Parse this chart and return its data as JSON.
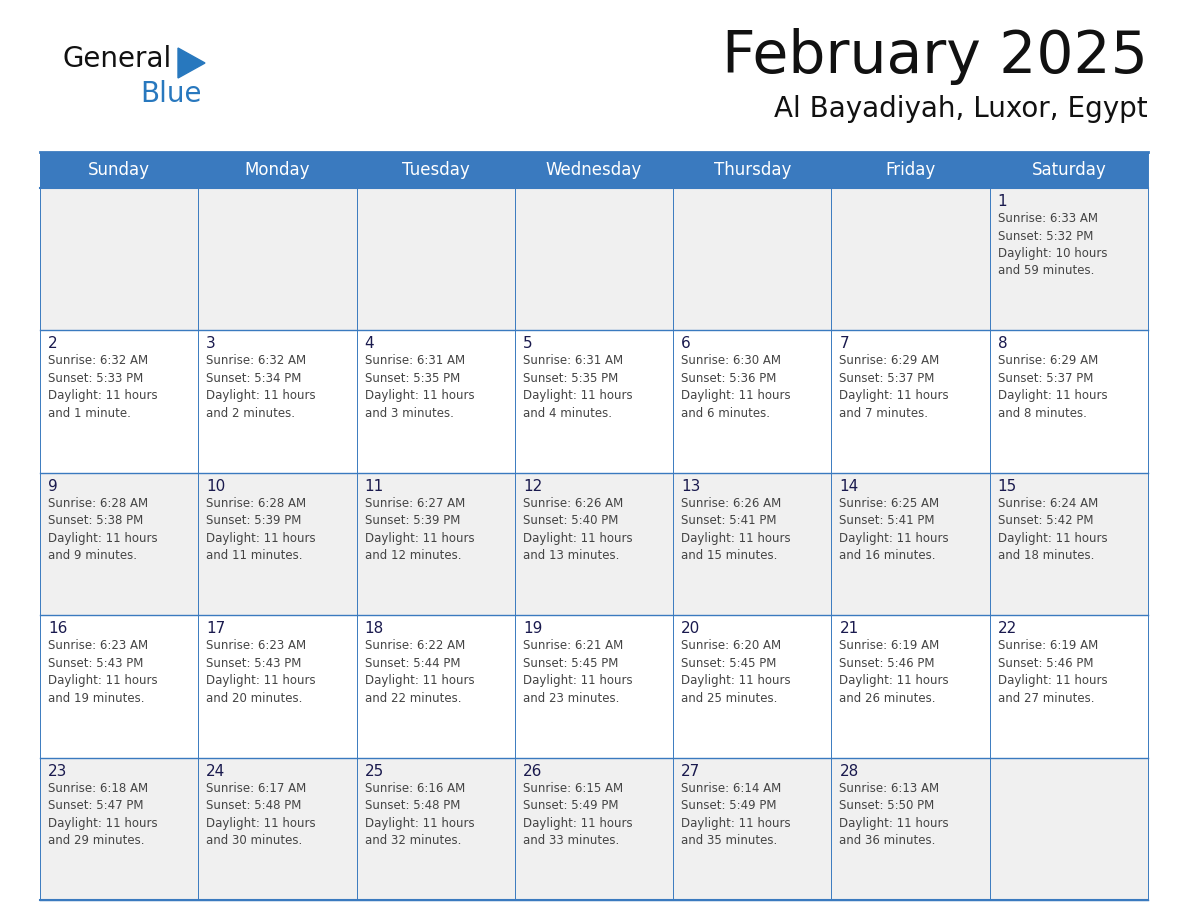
{
  "title": "February 2025",
  "subtitle": "Al Bayadiyah, Luxor, Egypt",
  "days_of_week": [
    "Sunday",
    "Monday",
    "Tuesday",
    "Wednesday",
    "Thursday",
    "Friday",
    "Saturday"
  ],
  "header_bg_color": "#3a7abf",
  "header_text_color": "#ffffff",
  "cell_bg_color": "#f0f0f0",
  "cell_alt_bg_color": "#ffffff",
  "day_number_color": "#1a1a4e",
  "info_text_color": "#444444",
  "border_color": "#3a7abf",
  "logo_general_color": "#111111",
  "logo_blue_color": "#2878be",
  "logo_triangle_color": "#2878be",
  "title_color": "#111111",
  "subtitle_color": "#111111",
  "calendar_data": [
    {
      "day": 1,
      "col": 6,
      "row": 0,
      "sunrise": "6:33 AM",
      "sunset": "5:32 PM",
      "daylight_hours": 10,
      "daylight_minutes": 59
    },
    {
      "day": 2,
      "col": 0,
      "row": 1,
      "sunrise": "6:32 AM",
      "sunset": "5:33 PM",
      "daylight_hours": 11,
      "daylight_minutes": 1
    },
    {
      "day": 3,
      "col": 1,
      "row": 1,
      "sunrise": "6:32 AM",
      "sunset": "5:34 PM",
      "daylight_hours": 11,
      "daylight_minutes": 2
    },
    {
      "day": 4,
      "col": 2,
      "row": 1,
      "sunrise": "6:31 AM",
      "sunset": "5:35 PM",
      "daylight_hours": 11,
      "daylight_minutes": 3
    },
    {
      "day": 5,
      "col": 3,
      "row": 1,
      "sunrise": "6:31 AM",
      "sunset": "5:35 PM",
      "daylight_hours": 11,
      "daylight_minutes": 4
    },
    {
      "day": 6,
      "col": 4,
      "row": 1,
      "sunrise": "6:30 AM",
      "sunset": "5:36 PM",
      "daylight_hours": 11,
      "daylight_minutes": 6
    },
    {
      "day": 7,
      "col": 5,
      "row": 1,
      "sunrise": "6:29 AM",
      "sunset": "5:37 PM",
      "daylight_hours": 11,
      "daylight_minutes": 7
    },
    {
      "day": 8,
      "col": 6,
      "row": 1,
      "sunrise": "6:29 AM",
      "sunset": "5:37 PM",
      "daylight_hours": 11,
      "daylight_minutes": 8
    },
    {
      "day": 9,
      "col": 0,
      "row": 2,
      "sunrise": "6:28 AM",
      "sunset": "5:38 PM",
      "daylight_hours": 11,
      "daylight_minutes": 9
    },
    {
      "day": 10,
      "col": 1,
      "row": 2,
      "sunrise": "6:28 AM",
      "sunset": "5:39 PM",
      "daylight_hours": 11,
      "daylight_minutes": 11
    },
    {
      "day": 11,
      "col": 2,
      "row": 2,
      "sunrise": "6:27 AM",
      "sunset": "5:39 PM",
      "daylight_hours": 11,
      "daylight_minutes": 12
    },
    {
      "day": 12,
      "col": 3,
      "row": 2,
      "sunrise": "6:26 AM",
      "sunset": "5:40 PM",
      "daylight_hours": 11,
      "daylight_minutes": 13
    },
    {
      "day": 13,
      "col": 4,
      "row": 2,
      "sunrise": "6:26 AM",
      "sunset": "5:41 PM",
      "daylight_hours": 11,
      "daylight_minutes": 15
    },
    {
      "day": 14,
      "col": 5,
      "row": 2,
      "sunrise": "6:25 AM",
      "sunset": "5:41 PM",
      "daylight_hours": 11,
      "daylight_minutes": 16
    },
    {
      "day": 15,
      "col": 6,
      "row": 2,
      "sunrise": "6:24 AM",
      "sunset": "5:42 PM",
      "daylight_hours": 11,
      "daylight_minutes": 18
    },
    {
      "day": 16,
      "col": 0,
      "row": 3,
      "sunrise": "6:23 AM",
      "sunset": "5:43 PM",
      "daylight_hours": 11,
      "daylight_minutes": 19
    },
    {
      "day": 17,
      "col": 1,
      "row": 3,
      "sunrise": "6:23 AM",
      "sunset": "5:43 PM",
      "daylight_hours": 11,
      "daylight_minutes": 20
    },
    {
      "day": 18,
      "col": 2,
      "row": 3,
      "sunrise": "6:22 AM",
      "sunset": "5:44 PM",
      "daylight_hours": 11,
      "daylight_minutes": 22
    },
    {
      "day": 19,
      "col": 3,
      "row": 3,
      "sunrise": "6:21 AM",
      "sunset": "5:45 PM",
      "daylight_hours": 11,
      "daylight_minutes": 23
    },
    {
      "day": 20,
      "col": 4,
      "row": 3,
      "sunrise": "6:20 AM",
      "sunset": "5:45 PM",
      "daylight_hours": 11,
      "daylight_minutes": 25
    },
    {
      "day": 21,
      "col": 5,
      "row": 3,
      "sunrise": "6:19 AM",
      "sunset": "5:46 PM",
      "daylight_hours": 11,
      "daylight_minutes": 26
    },
    {
      "day": 22,
      "col": 6,
      "row": 3,
      "sunrise": "6:19 AM",
      "sunset": "5:46 PM",
      "daylight_hours": 11,
      "daylight_minutes": 27
    },
    {
      "day": 23,
      "col": 0,
      "row": 4,
      "sunrise": "6:18 AM",
      "sunset": "5:47 PM",
      "daylight_hours": 11,
      "daylight_minutes": 29
    },
    {
      "day": 24,
      "col": 1,
      "row": 4,
      "sunrise": "6:17 AM",
      "sunset": "5:48 PM",
      "daylight_hours": 11,
      "daylight_minutes": 30
    },
    {
      "day": 25,
      "col": 2,
      "row": 4,
      "sunrise": "6:16 AM",
      "sunset": "5:48 PM",
      "daylight_hours": 11,
      "daylight_minutes": 32
    },
    {
      "day": 26,
      "col": 3,
      "row": 4,
      "sunrise": "6:15 AM",
      "sunset": "5:49 PM",
      "daylight_hours": 11,
      "daylight_minutes": 33
    },
    {
      "day": 27,
      "col": 4,
      "row": 4,
      "sunrise": "6:14 AM",
      "sunset": "5:49 PM",
      "daylight_hours": 11,
      "daylight_minutes": 35
    },
    {
      "day": 28,
      "col": 5,
      "row": 4,
      "sunrise": "6:13 AM",
      "sunset": "5:50 PM",
      "daylight_hours": 11,
      "daylight_minutes": 36
    }
  ],
  "num_rows": 5,
  "num_cols": 7,
  "fig_width": 11.88,
  "fig_height": 9.18
}
